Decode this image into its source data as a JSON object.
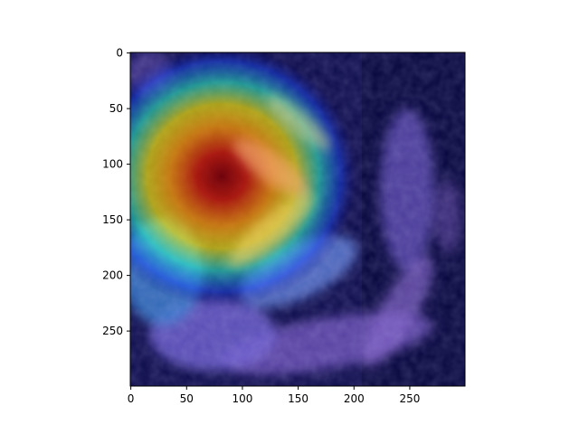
{
  "chart_data": {
    "type": "heatmap",
    "title": "",
    "xlabel": "",
    "ylabel": "",
    "xlim": [
      0,
      299
    ],
    "ylim": [
      299,
      0
    ],
    "x_ticks": [
      0,
      50,
      100,
      150,
      200,
      250
    ],
    "y_ticks": [
      0,
      50,
      100,
      150,
      200,
      250
    ],
    "x_tick_labels": [
      "0",
      "50",
      "100",
      "150",
      "200",
      "250"
    ],
    "y_tick_labels": [
      "0",
      "50",
      "100",
      "150",
      "200",
      "250"
    ],
    "colormap": "jet",
    "grid": false,
    "legend": "none",
    "hotspot": {
      "center": [
        82,
        108
      ],
      "peak_level": 1.0,
      "description_colors": [
        "#00007f",
        "#0000ff",
        "#00ffff",
        "#ffff00",
        "#ff0000",
        "#7f0000"
      ]
    },
    "colors": {
      "background_dark": "#0a0a3c",
      "axis_color": "#000000"
    }
  }
}
